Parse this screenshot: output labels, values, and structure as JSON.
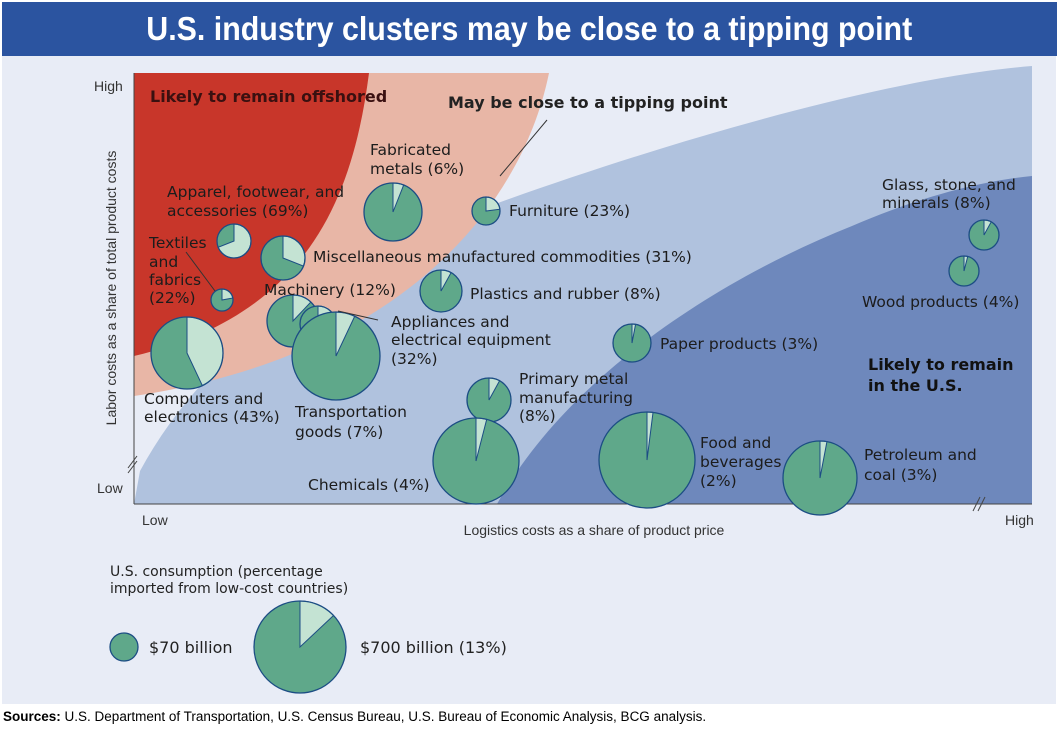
{
  "title": "U.S. industry clusters may be close to a tipping point",
  "sources_label": "Sources:",
  "sources_text": "U.S. Department of Transportation, U.S. Census Bureau, U.S. Bureau of Economic Analysis, BCG analysis.",
  "chart_data": {
    "type": "scatter",
    "subtype": "bubble-pie",
    "xlabel": "Logistics costs as a share of product price",
    "ylabel": "Labor costs as a share of total product costs",
    "x_ticks": [
      "Low",
      "High"
    ],
    "y_ticks": [
      "High",
      "Low"
    ],
    "colors": {
      "pie_main": "#5fa88a",
      "pie_imported": "#c4e3d3",
      "pie_edge": "#1c4d84",
      "zone_offshore": "#c8362a",
      "zone_tipping": "#e8b6a6",
      "zone_middle": "#b0c2de",
      "zone_us": "#6e88bc"
    },
    "zones": [
      {
        "label": "Likely to remain offshored",
        "color": "#c8362a"
      },
      {
        "label": "May be close to a tipping point",
        "color": "#e8b6a6"
      },
      {
        "label": "Likely to remain in the U.S.",
        "color": "#6e88bc"
      }
    ],
    "series": [
      {
        "label": "Apparel, footwear, and accessories (69%)",
        "imported_pct": 69
      },
      {
        "label": "Textiles and fabrics (22%)",
        "imported_pct": 22
      },
      {
        "label": "Computers and electronics (43%)",
        "imported_pct": 43
      },
      {
        "label": "Fabricated metals (6%)",
        "imported_pct": 6
      },
      {
        "label": "Furniture (23%)",
        "imported_pct": 23
      },
      {
        "label": "Miscellaneous manufactured commodities (31%)",
        "imported_pct": 31
      },
      {
        "label": "Machinery (12%)",
        "imported_pct": 12
      },
      {
        "label": "Appliances and electrical equipment (32%)",
        "imported_pct": 32
      },
      {
        "label": "Transportation goods (7%)",
        "imported_pct": 7
      },
      {
        "label": "Plastics and rubber (8%)",
        "imported_pct": 8
      },
      {
        "label": "Paper products (3%)",
        "imported_pct": 3
      },
      {
        "label": "Primary metal manufacturing (8%)",
        "imported_pct": 8
      },
      {
        "label": "Chemicals (4%)",
        "imported_pct": 4
      },
      {
        "label": "Food and beverages (2%)",
        "imported_pct": 2
      },
      {
        "label": "Petroleum and coal (3%)",
        "imported_pct": 3
      },
      {
        "label": "Glass, stone, and minerals (8%)",
        "imported_pct": 8
      },
      {
        "label": "Wood products (4%)",
        "imported_pct": 4
      }
    ],
    "legend": {
      "title": "U.S. consumption (percentage imported from low-cost countries)",
      "items": [
        {
          "label": "$70 billion",
          "imported_pct": 0
        },
        {
          "label": "$700 billion (13%)",
          "imported_pct": 13
        }
      ]
    }
  }
}
